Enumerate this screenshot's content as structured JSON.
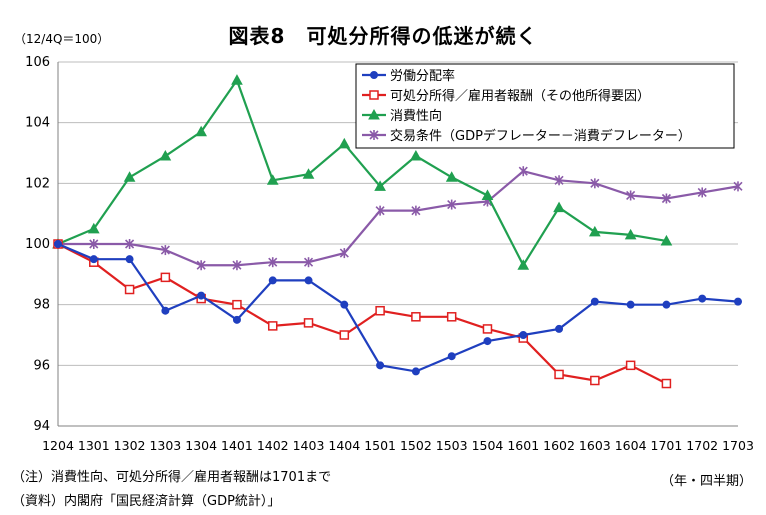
{
  "header": {
    "title": "図表8　可処分所得の低迷が続く",
    "unit_label": "（12/4Q＝100）"
  },
  "footer": {
    "note": "（注）消費性向、可処分所得／雇用者報酬は1701まで",
    "source": "（資料）内閣府「国民経済計算（GDP統計）」",
    "x_unit": "（年・四半期）"
  },
  "colors": {
    "blue": "#1f3fbf",
    "red": "#e02020",
    "green": "#20a050",
    "purple": "#8a5aa8"
  },
  "chart_data": {
    "type": "line",
    "title": "図表8　可処分所得の低迷が続く",
    "xlabel": "（年・四半期）",
    "ylabel": "（12/4Q＝100）",
    "ylim": [
      94,
      106
    ],
    "yticks": [
      94,
      96,
      98,
      100,
      102,
      104,
      106
    ],
    "grid": true,
    "legend_position": "top-right",
    "categories": [
      "1204",
      "1301",
      "1302",
      "1303",
      "1304",
      "1401",
      "1402",
      "1403",
      "1404",
      "1501",
      "1502",
      "1503",
      "1504",
      "1601",
      "1602",
      "1603",
      "1604",
      "1701",
      "1702",
      "1703"
    ],
    "series": [
      {
        "name": "労働分配率",
        "color": "#1f3fbf",
        "marker": "circle",
        "values": [
          100,
          99.5,
          99.5,
          97.8,
          98.3,
          97.5,
          98.8,
          98.8,
          98.0,
          96.0,
          95.8,
          96.3,
          96.8,
          97.0,
          97.2,
          98.1,
          98.0,
          98.0,
          98.2,
          98.1
        ]
      },
      {
        "name": "可処分所得／雇用者報酬（その他所得要因）",
        "color": "#e02020",
        "marker": "square",
        "values": [
          100,
          99.4,
          98.5,
          98.9,
          98.2,
          98.0,
          97.3,
          97.4,
          97.0,
          97.8,
          97.6,
          97.6,
          97.2,
          96.9,
          95.7,
          95.5,
          96.0,
          95.4,
          null,
          null
        ]
      },
      {
        "name": "消費性向",
        "color": "#20a050",
        "marker": "triangle",
        "values": [
          100,
          100.5,
          102.2,
          102.9,
          103.7,
          105.4,
          102.1,
          102.3,
          103.3,
          101.9,
          102.9,
          102.2,
          101.6,
          99.3,
          101.2,
          100.4,
          100.3,
          100.1,
          null,
          null
        ]
      },
      {
        "name": "交易条件（GDPデフレーター－消費デフレーター）",
        "color": "#8a5aa8",
        "marker": "star",
        "values": [
          100,
          100,
          100,
          99.8,
          99.3,
          99.3,
          99.4,
          99.4,
          99.7,
          101.1,
          101.1,
          101.3,
          101.4,
          102.4,
          102.1,
          102.0,
          101.6,
          101.5,
          101.7,
          101.9
        ]
      }
    ]
  }
}
